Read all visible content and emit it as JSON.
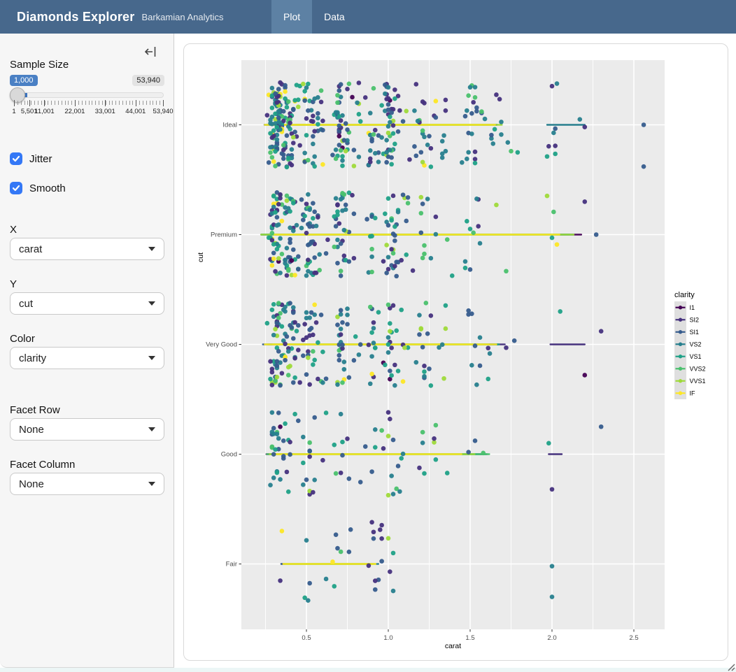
{
  "header": {
    "title": "Diamonds Explorer",
    "subtitle": "Barkamian Analytics",
    "tabs": [
      {
        "label": "Plot",
        "active": true
      },
      {
        "label": "Data",
        "active": false
      }
    ],
    "colors": {
      "bar_bg": "#47688c",
      "active_tab_bg": "#5d81a4"
    }
  },
  "sidebar": {
    "sample_size": {
      "label": "Sample Size",
      "value": "1,000",
      "max_badge": "53,940",
      "min_value": 1,
      "max_value": 53940,
      "current_value": 1000,
      "tick_labels": [
        {
          "v": 1,
          "t": "1"
        },
        {
          "v": 5501,
          "t": "5,501"
        },
        {
          "v": 11001,
          "t": "11,001"
        },
        {
          "v": 22001,
          "t": "22,001"
        },
        {
          "v": 33001,
          "t": "33,001"
        },
        {
          "v": 44001,
          "t": "44,001"
        },
        {
          "v": 53940,
          "t": "53,940"
        }
      ]
    },
    "checkboxes": [
      {
        "label": "Jitter",
        "checked": true
      },
      {
        "label": "Smooth",
        "checked": true
      }
    ],
    "selects": [
      {
        "label": "X",
        "value": "carat"
      },
      {
        "label": "Y",
        "value": "cut"
      },
      {
        "label": "Color",
        "value": "clarity"
      },
      {
        "label": "Facet Row",
        "value": "None"
      },
      {
        "label": "Facet Column",
        "value": "None"
      }
    ]
  },
  "chart_data": {
    "type": "scatter",
    "subtype": "jittered categorical scatter (geom_jitter) with flat per-group smooth lines",
    "xlabel": "carat",
    "ylabel": "cut",
    "x_ticks": [
      "0.5",
      "1.0",
      "1.5",
      "2.0",
      "2.5"
    ],
    "x_tick_values": [
      0.5,
      1.0,
      1.5,
      2.0,
      2.5
    ],
    "x_minor_values": [
      0.25,
      0.75,
      1.25,
      1.75,
      2.25
    ],
    "xlim": [
      0.1,
      2.69
    ],
    "categories_top_to_bottom": [
      "Ideal",
      "Premium",
      "Very Good",
      "Good",
      "Fair"
    ],
    "jitter_height": 0.4,
    "panel_bg": "#EBEBEB",
    "grid_color": "#FFFFFF",
    "tick_label_color": "#4d4d4d",
    "legend": {
      "title": "clarity",
      "labels": [
        "I1",
        "SI2",
        "SI1",
        "VS2",
        "VS1",
        "VVS2",
        "VVS1",
        "IF"
      ],
      "colors": [
        "#440154",
        "#46327E",
        "#365C8D",
        "#277F8E",
        "#1FA187",
        "#4AC16D",
        "#9FDA3A",
        "#FDE725"
      ],
      "key_bg": "#DFDFDF",
      "position": "right"
    },
    "clarity_weights": [
      1.4,
      17,
      24,
      23,
      15,
      9.4,
      6.8,
      3.3
    ],
    "seed": 42,
    "default_clusters": {
      "centers": [
        0.3,
        0.31,
        0.32,
        0.33,
        0.35,
        0.38,
        0.4,
        0.41,
        0.43,
        0.5,
        0.51,
        0.53,
        0.57,
        0.6,
        0.7,
        0.71,
        0.72,
        0.75,
        0.8,
        0.9,
        0.91,
        1.0,
        1.01,
        1.02,
        1.06,
        1.1,
        1.2,
        1.21,
        1.27,
        1.35,
        1.5,
        1.51,
        1.56,
        1.62,
        1.7,
        1.75,
        2.0,
        2.03
      ],
      "weights": [
        10,
        6,
        5,
        4,
        4,
        3,
        6,
        4,
        3,
        7,
        4,
        3,
        2,
        2,
        6,
        4,
        3,
        2,
        2,
        2,
        2,
        6,
        4,
        3,
        2,
        2,
        3,
        2,
        2,
        1,
        3,
        2,
        1,
        1,
        1.5,
        1,
        1.5,
        1
      ],
      "sigma": 0.022,
      "x_min": 0.21
    },
    "groups": [
      {
        "cut": "Ideal",
        "count": 360,
        "x_max": 2.1,
        "smooth": [
          0.23,
          1.76
        ],
        "extra_segments": [
          [
            1.97,
            2.2
          ]
        ],
        "extra_points": [
          [
            2.56,
            0,
            2
          ],
          [
            2.56,
            0.38,
            2
          ],
          [
            2.17,
            -0.05,
            3
          ],
          [
            2.2,
            0.02,
            1
          ]
        ]
      },
      {
        "cut": "Premium",
        "count": 240,
        "x_max": 2.2,
        "smooth": [
          0.22,
          2.18
        ],
        "extra_segments": [],
        "extra_points": [
          [
            2.27,
            0.0,
            2
          ],
          [
            2.2,
            -0.3,
            1
          ]
        ]
      },
      {
        "cut": "Very Good",
        "count": 210,
        "x_max": 1.85,
        "smooth": [
          0.23,
          1.72
        ],
        "extra_segments": [
          [
            1.99,
            2.2
          ]
        ],
        "extra_points": [
          [
            2.3,
            -0.12,
            1
          ],
          [
            2.2,
            0.28,
            0
          ],
          [
            2.05,
            -0.3,
            4
          ]
        ]
      },
      {
        "cut": "Good",
        "count": 85,
        "x_max": 1.62,
        "smooth": [
          0.25,
          1.62
        ],
        "extra_segments": [
          [
            1.98,
            2.06
          ]
        ],
        "extra_points": [
          [
            2.3,
            -0.25,
            2
          ],
          [
            2.0,
            0.32,
            1
          ],
          [
            1.98,
            -0.1,
            4
          ]
        ]
      },
      {
        "cut": "Fair",
        "count": 26,
        "x_max": 1.05,
        "smooth": [
          0.34,
          0.95
        ],
        "clusters": {
          "centers": [
            0.35,
            0.5,
            0.6,
            0.7,
            0.8,
            0.9,
            0.95,
            1.0
          ],
          "weights": [
            3,
            2,
            2,
            4,
            3,
            4,
            2,
            3
          ],
          "sigma": 0.03,
          "x_min": 0.3
        },
        "extra_segments": [],
        "extra_points": [
          [
            2.0,
            0.02,
            3
          ],
          [
            2.0,
            0.3,
            3
          ],
          [
            0.66,
            -0.02,
            7
          ],
          [
            0.35,
            -0.3,
            7
          ],
          [
            0.9,
            -0.38,
            1
          ]
        ]
      }
    ]
  }
}
